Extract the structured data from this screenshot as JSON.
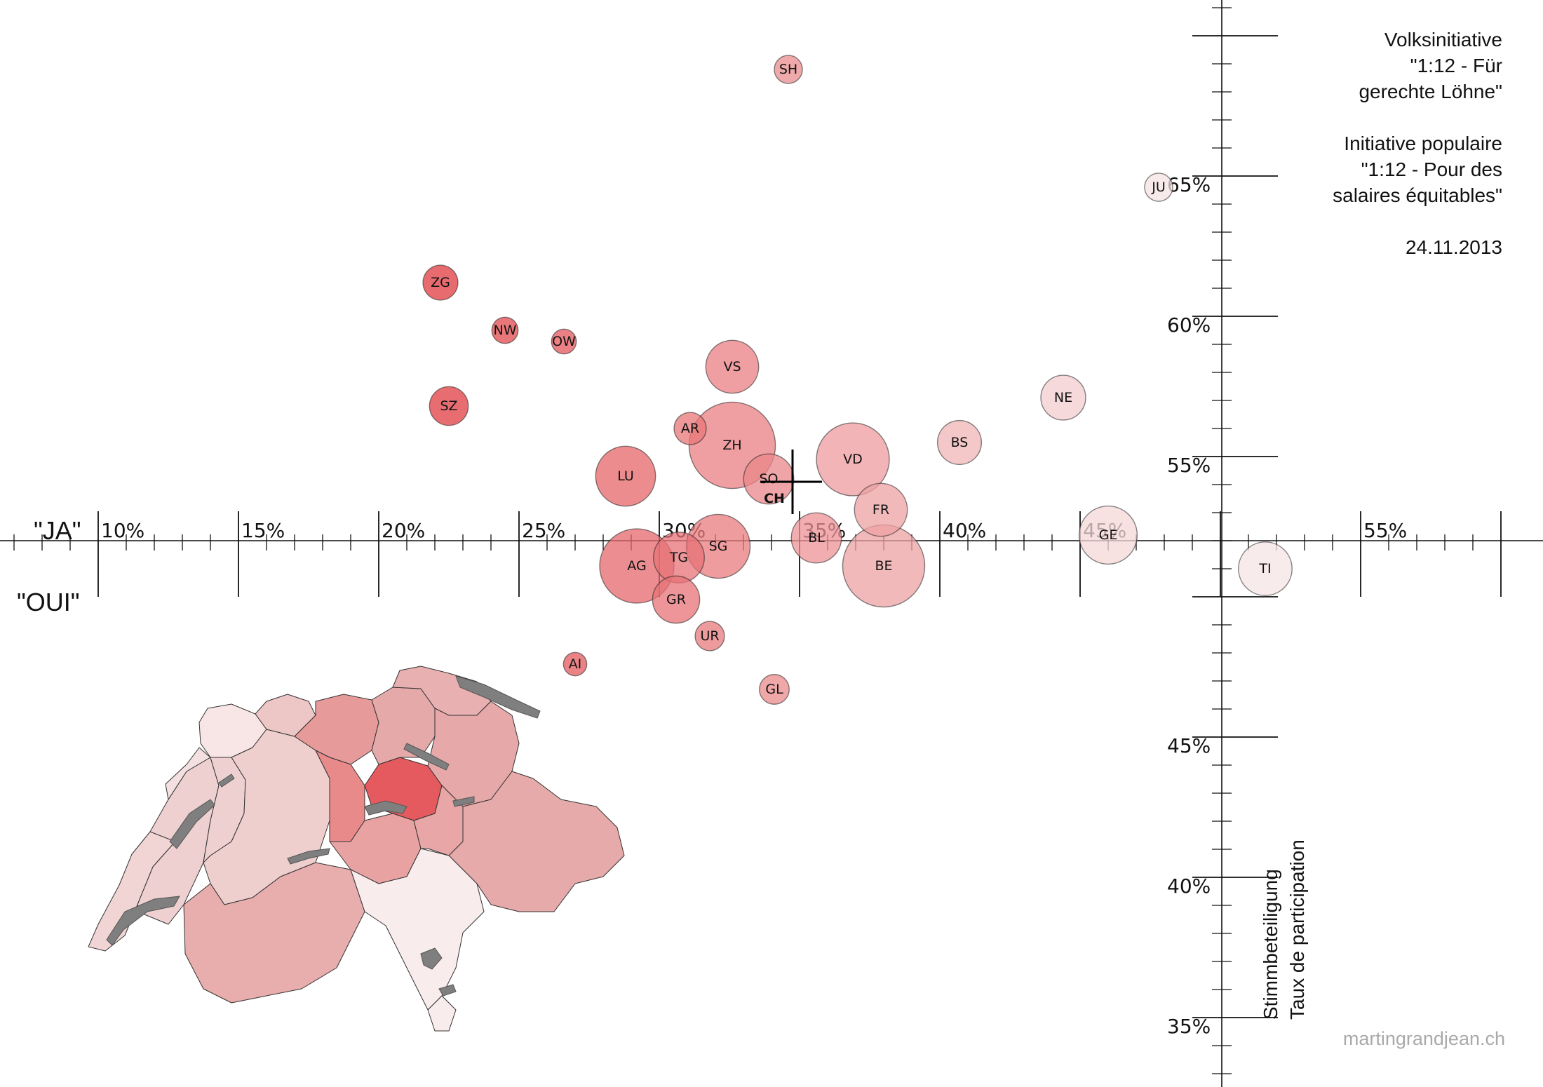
{
  "title": {
    "de": "Volksinitiative\n\"1:12 - Für\ngerechte Löhne\"",
    "fr": "Initiative populaire\n\"1:12 - Pour des\nsalaires équitables\"",
    "date": "24.11.2013"
  },
  "axis_labels": {
    "yes_de": "\"JA\"",
    "yes_fr": "\"OUI\"",
    "turnout_de": "Stimmbeteiligung",
    "turnout_fr": "Taux de participation"
  },
  "credit": "martingrandjean.ch",
  "colors": {
    "bubble_dark": "#e0393e",
    "bubble_light": "#f6e4e4",
    "axis": "#111111",
    "lake": "#7f7f7f"
  },
  "chart_data": {
    "type": "scatter",
    "x_axis": {
      "quantity": "Yes share",
      "range": [
        5,
        60
      ],
      "tick_labels": [
        "10%",
        "15%",
        "20%",
        "25%",
        "30%",
        "35%",
        "40%",
        "45%",
        "55%"
      ],
      "tick_values": [
        10,
        15,
        20,
        25,
        30,
        35,
        40,
        45,
        55
      ]
    },
    "y_axis": {
      "quantity": "Turnout",
      "range": [
        33,
        71
      ],
      "tick_labels": [
        "35%",
        "40%",
        "45%",
        "55%",
        "60%",
        "65%"
      ],
      "tick_values": [
        35,
        40,
        45,
        55,
        60,
        65
      ]
    },
    "size_encoding": "electorate",
    "color_encoding": "Yes share (darker = lower)",
    "national": {
      "label": "CH",
      "x": 34.7,
      "y": 53.9
    },
    "points": [
      {
        "label": "SH",
        "x": 34.6,
        "y": 68.8,
        "size": 0.55
      },
      {
        "label": "JU",
        "x": 47.8,
        "y": 64.6,
        "size": 0.55
      },
      {
        "label": "ZG",
        "x": 22.2,
        "y": 61.2,
        "size": 0.85
      },
      {
        "label": "NW",
        "x": 24.5,
        "y": 59.5,
        "size": 0.48
      },
      {
        "label": "OW",
        "x": 26.6,
        "y": 59.1,
        "size": 0.43
      },
      {
        "label": "SZ",
        "x": 22.5,
        "y": 56.8,
        "size": 1.05
      },
      {
        "label": "VS",
        "x": 32.6,
        "y": 58.2,
        "size": 1.95
      },
      {
        "label": "NE",
        "x": 44.4,
        "y": 57.1,
        "size": 1.4
      },
      {
        "label": "AR",
        "x": 31.1,
        "y": 56.0,
        "size": 0.72
      },
      {
        "label": "BS",
        "x": 40.7,
        "y": 55.5,
        "size": 1.35
      },
      {
        "label": "ZH",
        "x": 32.6,
        "y": 55.4,
        "size": 5.2
      },
      {
        "label": "VD",
        "x": 36.9,
        "y": 54.9,
        "size": 3.7
      },
      {
        "label": "LU",
        "x": 28.8,
        "y": 54.3,
        "size": 2.5
      },
      {
        "label": "SO",
        "x": 33.9,
        "y": 54.2,
        "size": 1.75
      },
      {
        "label": "FR",
        "x": 37.9,
        "y": 53.1,
        "size": 1.95
      },
      {
        "label": "BL",
        "x": 35.6,
        "y": 52.1,
        "size": 1.75
      },
      {
        "label": "SG",
        "x": 32.1,
        "y": 51.8,
        "size": 2.85
      },
      {
        "label": "GE",
        "x": 46.0,
        "y": 52.2,
        "size": 2.35
      },
      {
        "label": "BE",
        "x": 38.0,
        "y": 51.1,
        "size": 4.7
      },
      {
        "label": "AG",
        "x": 29.2,
        "y": 51.1,
        "size": 3.85
      },
      {
        "label": "TG",
        "x": 30.7,
        "y": 51.4,
        "size": 1.8
      },
      {
        "label": "TI",
        "x": 51.6,
        "y": 51.0,
        "size": 2.0
      },
      {
        "label": "GR",
        "x": 30.6,
        "y": 49.9,
        "size": 1.55
      },
      {
        "label": "UR",
        "x": 31.8,
        "y": 48.6,
        "size": 0.6
      },
      {
        "label": "AI",
        "x": 27.0,
        "y": 47.6,
        "size": 0.38
      },
      {
        "label": "GL",
        "x": 34.1,
        "y": 46.7,
        "size": 0.62
      }
    ]
  },
  "map": {
    "lake_color": "#7f7f7f",
    "border_color": "#333333"
  }
}
